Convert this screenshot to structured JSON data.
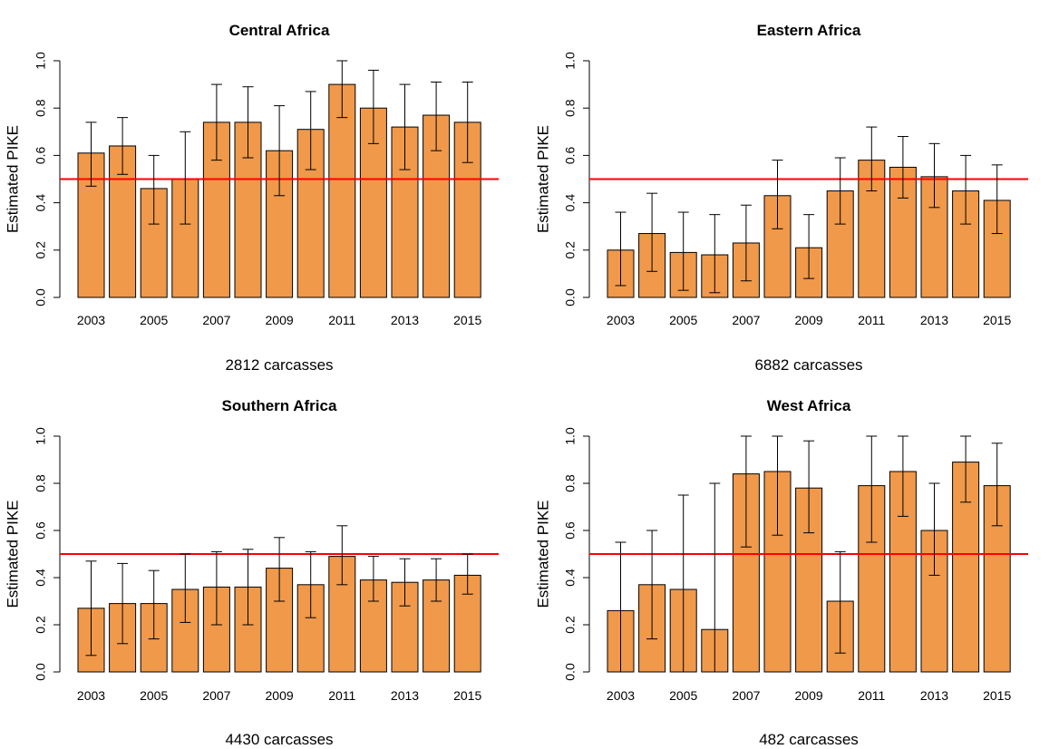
{
  "colors": {
    "bar_fill": "#F0994A",
    "bar_stroke": "#000000",
    "reference_line": "#FF0000",
    "error_bar": "#000000"
  },
  "chart_data": [
    {
      "type": "bar",
      "title": "Central Africa",
      "ylabel": "Estimated PIKE",
      "xlabel": "2812 carcasses",
      "ylim": [
        0,
        1
      ],
      "yticks": [
        "0.0",
        "0.2",
        "0.4",
        "0.6",
        "0.8",
        "1.0"
      ],
      "categories": [
        "2003",
        "2004",
        "2005",
        "2006",
        "2007",
        "2008",
        "2009",
        "2010",
        "2011",
        "2012",
        "2013",
        "2014",
        "2015"
      ],
      "x_tick_labels": [
        "2003",
        "2005",
        "2007",
        "2009",
        "2011",
        "2013",
        "2015"
      ],
      "values": [
        0.61,
        0.64,
        0.46,
        0.5,
        0.74,
        0.74,
        0.62,
        0.71,
        0.9,
        0.8,
        0.72,
        0.77,
        0.74
      ],
      "ci_lower": [
        0.47,
        0.52,
        0.31,
        0.31,
        0.58,
        0.59,
        0.43,
        0.54,
        0.76,
        0.65,
        0.54,
        0.62,
        0.57
      ],
      "ci_upper": [
        0.74,
        0.76,
        0.6,
        0.7,
        0.9,
        0.89,
        0.81,
        0.87,
        1.0,
        0.96,
        0.9,
        0.91,
        0.91
      ],
      "reference_line": 0.5,
      "grid": false
    },
    {
      "type": "bar",
      "title": "Eastern Africa",
      "ylabel": "Estimated PIKE",
      "xlabel": "6882 carcasses",
      "ylim": [
        0,
        1
      ],
      "yticks": [
        "0.0",
        "0.2",
        "0.4",
        "0.6",
        "0.8",
        "1.0"
      ],
      "categories": [
        "2003",
        "2004",
        "2005",
        "2006",
        "2007",
        "2008",
        "2009",
        "2010",
        "2011",
        "2012",
        "2013",
        "2014",
        "2015"
      ],
      "x_tick_labels": [
        "2003",
        "2005",
        "2007",
        "2009",
        "2011",
        "2013",
        "2015"
      ],
      "values": [
        0.2,
        0.27,
        0.19,
        0.18,
        0.23,
        0.43,
        0.21,
        0.45,
        0.58,
        0.55,
        0.51,
        0.45,
        0.41
      ],
      "ci_lower": [
        0.05,
        0.11,
        0.03,
        0.02,
        0.07,
        0.29,
        0.08,
        0.31,
        0.45,
        0.42,
        0.38,
        0.31,
        0.27
      ],
      "ci_upper": [
        0.36,
        0.44,
        0.36,
        0.35,
        0.39,
        0.58,
        0.35,
        0.59,
        0.72,
        0.68,
        0.65,
        0.6,
        0.56
      ],
      "reference_line": 0.5,
      "grid": false
    },
    {
      "type": "bar",
      "title": "Southern Africa",
      "ylabel": "Estimated PIKE",
      "xlabel": "4430 carcasses",
      "ylim": [
        0,
        1
      ],
      "yticks": [
        "0.0",
        "0.2",
        "0.4",
        "0.6",
        "0.8",
        "1.0"
      ],
      "categories": [
        "2003",
        "2004",
        "2005",
        "2006",
        "2007",
        "2008",
        "2009",
        "2010",
        "2011",
        "2012",
        "2013",
        "2014",
        "2015"
      ],
      "x_tick_labels": [
        "2003",
        "2005",
        "2007",
        "2009",
        "2011",
        "2013",
        "2015"
      ],
      "values": [
        0.27,
        0.29,
        0.29,
        0.35,
        0.36,
        0.36,
        0.44,
        0.37,
        0.49,
        0.39,
        0.38,
        0.39,
        0.41
      ],
      "ci_lower": [
        0.07,
        0.12,
        0.14,
        0.21,
        0.2,
        0.2,
        0.3,
        0.23,
        0.37,
        0.3,
        0.28,
        0.3,
        0.33
      ],
      "ci_upper": [
        0.47,
        0.46,
        0.43,
        0.5,
        0.51,
        0.52,
        0.57,
        0.51,
        0.62,
        0.49,
        0.48,
        0.48,
        0.5
      ],
      "reference_line": 0.5,
      "grid": false
    },
    {
      "type": "bar",
      "title": "West Africa",
      "ylabel": "Estimated PIKE",
      "xlabel": "482 carcasses",
      "ylim": [
        0,
        1
      ],
      "yticks": [
        "0.0",
        "0.2",
        "0.4",
        "0.6",
        "0.8",
        "1.0"
      ],
      "categories": [
        "2003",
        "2004",
        "2005",
        "2006",
        "2007",
        "2008",
        "2009",
        "2010",
        "2011",
        "2012",
        "2013",
        "2014",
        "2015"
      ],
      "x_tick_labels": [
        "2003",
        "2005",
        "2007",
        "2009",
        "2011",
        "2013",
        "2015"
      ],
      "values": [
        0.26,
        0.37,
        0.35,
        0.18,
        0.84,
        0.85,
        0.78,
        0.3,
        0.79,
        0.85,
        0.6,
        0.89,
        0.79
      ],
      "ci_lower": [
        0.0,
        0.14,
        0.0,
        0.0,
        0.53,
        0.58,
        0.59,
        0.08,
        0.55,
        0.66,
        0.41,
        0.72,
        0.62
      ],
      "ci_upper": [
        0.55,
        0.6,
        0.75,
        0.8,
        1.0,
        1.0,
        0.98,
        0.51,
        1.0,
        1.0,
        0.8,
        1.0,
        0.97
      ],
      "reference_line": 0.5,
      "grid": false
    }
  ]
}
